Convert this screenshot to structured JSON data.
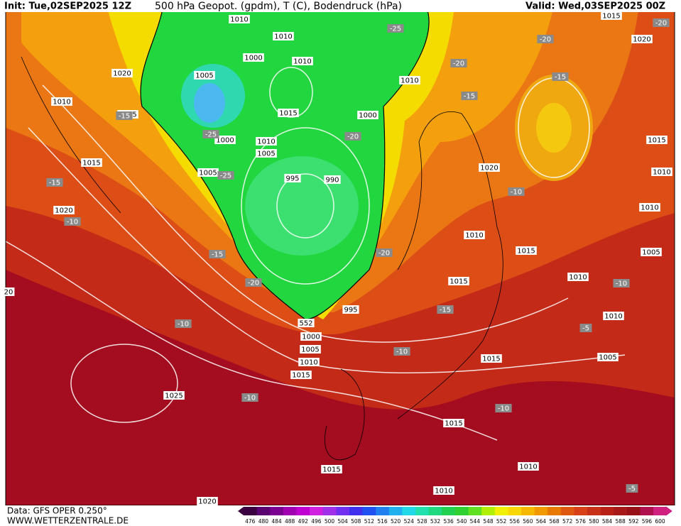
{
  "header": {
    "init": "Init: Tue,02SEP2025 12Z",
    "title": "500 hPa Geopot. (gpdm), T (C), Bodendruck (hPa)",
    "valid": "Valid: Wed,03SEP2025 00Z"
  },
  "footer": {
    "data": "Data: GFS OPER 0.250°",
    "site": "WWW.WETTERZENTRALE.DE"
  },
  "colorbar": {
    "labels": [
      476,
      480,
      484,
      488,
      492,
      496,
      500,
      504,
      508,
      512,
      516,
      520,
      524,
      528,
      532,
      536,
      540,
      544,
      548,
      552,
      556,
      560,
      564,
      568,
      572,
      576,
      580,
      584,
      588,
      592,
      596,
      600
    ],
    "colors": [
      "#3a0040",
      "#5a0070",
      "#7a0090",
      "#a000b0",
      "#c000d0",
      "#d020e0",
      "#a030e8",
      "#7030f0",
      "#4030f0",
      "#2050f0",
      "#2080f0",
      "#20b0f0",
      "#20d8e8",
      "#20e0b0",
      "#20d880",
      "#20d050",
      "#30d030",
      "#60e020",
      "#b0f000",
      "#f0f000",
      "#f8d800",
      "#f8b800",
      "#f09800",
      "#e87800",
      "#e05810",
      "#d84018",
      "#c83018",
      "#b82018",
      "#a81818",
      "#981018",
      "#b01050",
      "#d02080"
    ]
  },
  "map": {
    "pressure_labels": [
      "1010",
      "1010",
      "1000",
      "1010",
      "1020",
      "1005",
      "1010",
      "1010",
      "1015",
      "1015",
      "1000",
      "1000",
      "1010",
      "1005",
      "1015",
      "1005",
      "995",
      "990",
      "1020",
      "1020",
      "1010",
      "1015",
      "1010",
      "1015",
      "995",
      "1000",
      "1005",
      "1010",
      "1015",
      "1015",
      "1025",
      "1015",
      "1010",
      "1015",
      "1010",
      "1020",
      "1015",
      "1020",
      "1015",
      "1010",
      "1010",
      "1005",
      "1010",
      "1005",
      "20",
      "552"
    ],
    "temperature_labels": [
      "-25",
      "-20",
      "-20",
      "-20",
      "-15",
      "-15",
      "-15",
      "-20",
      "-25",
      "-25",
      "-15",
      "-10",
      "-10",
      "-15",
      "-20",
      "-20",
      "-10",
      "-15",
      "-10",
      "-5",
      "-10",
      "-10",
      "-10",
      "-5"
    ]
  }
}
